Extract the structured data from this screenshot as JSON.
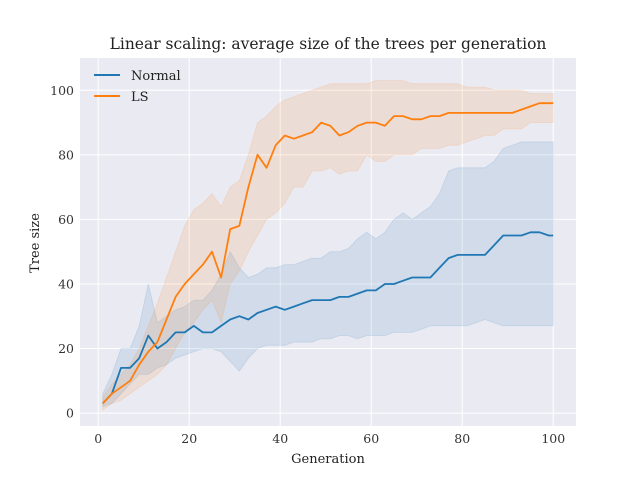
{
  "chart_data": {
    "type": "line",
    "title": "Linear scaling: average size of the trees per generation",
    "xlabel": "Generation",
    "ylabel": "Tree size",
    "xlim": [
      -4,
      105
    ],
    "ylim": [
      -4,
      110
    ],
    "xticks": [
      0,
      20,
      40,
      60,
      80,
      100
    ],
    "yticks": [
      0,
      20,
      40,
      60,
      80,
      100
    ],
    "grid": true,
    "legend_position": "top-left",
    "style": "seaborn-darkgrid",
    "colors": {
      "Normal": "#1f77b4",
      "LS": "#ff7f0e",
      "background": "#eaeaf2"
    },
    "series": [
      {
        "name": "Normal",
        "x": [
          1,
          3,
          5,
          7,
          9,
          11,
          13,
          15,
          17,
          19,
          21,
          23,
          25,
          27,
          29,
          31,
          33,
          35,
          37,
          39,
          41,
          43,
          45,
          47,
          49,
          51,
          53,
          55,
          57,
          59,
          61,
          63,
          65,
          67,
          69,
          71,
          73,
          75,
          77,
          79,
          81,
          83,
          85,
          87,
          89,
          91,
          93,
          95,
          97,
          99,
          100
        ],
        "mean": [
          3,
          6,
          14,
          14,
          17,
          24,
          20,
          22,
          25,
          25,
          27,
          25,
          25,
          27,
          29,
          30,
          29,
          31,
          32,
          33,
          32,
          33,
          34,
          35,
          35,
          35,
          36,
          36,
          37,
          38,
          38,
          40,
          40,
          41,
          42,
          42,
          42,
          45,
          48,
          49,
          49,
          49,
          49,
          52,
          55,
          55,
          55,
          56,
          56,
          55,
          55
        ],
        "lower": [
          2,
          3,
          6,
          9,
          12,
          12,
          14,
          15,
          17,
          18,
          19,
          20,
          20,
          19,
          16,
          13,
          17,
          20,
          21,
          21,
          21,
          22,
          22,
          22,
          23,
          23,
          24,
          24,
          23,
          24,
          24,
          24,
          25,
          25,
          25,
          26,
          27,
          27,
          27,
          27,
          27,
          28,
          29,
          28,
          27,
          27,
          27,
          27,
          27,
          27,
          27
        ],
        "upper": [
          6,
          12,
          20,
          20,
          27,
          40,
          28,
          30,
          32,
          33,
          35,
          35,
          38,
          43,
          50,
          45,
          42,
          43,
          45,
          45,
          46,
          46,
          47,
          48,
          48,
          50,
          50,
          51,
          54,
          56,
          54,
          56,
          60,
          62,
          60,
          62,
          64,
          68,
          75,
          76,
          76,
          76,
          76,
          78,
          82,
          83,
          84,
          84,
          84,
          84,
          84
        ]
      },
      {
        "name": "LS",
        "x": [
          1,
          3,
          5,
          7,
          9,
          11,
          13,
          15,
          17,
          19,
          21,
          23,
          25,
          27,
          29,
          31,
          33,
          35,
          37,
          39,
          41,
          43,
          45,
          47,
          49,
          51,
          53,
          55,
          57,
          59,
          61,
          63,
          65,
          67,
          69,
          71,
          73,
          75,
          77,
          79,
          81,
          83,
          85,
          87,
          89,
          91,
          93,
          95,
          97,
          99,
          100
        ],
        "mean": [
          3,
          6,
          8,
          10,
          15,
          19,
          22,
          29,
          36,
          40,
          43,
          46,
          50,
          42,
          57,
          58,
          70,
          80,
          76,
          83,
          86,
          85,
          86,
          87,
          90,
          89,
          86,
          87,
          89,
          90,
          90,
          89,
          92,
          92,
          91,
          91,
          92,
          92,
          93,
          93,
          93,
          93,
          93,
          93,
          93,
          93,
          94,
          95,
          96,
          96,
          96
        ],
        "lower": [
          1,
          3,
          4,
          6,
          8,
          10,
          12,
          15,
          20,
          25,
          28,
          32,
          35,
          28,
          40,
          44,
          50,
          55,
          60,
          62,
          65,
          70,
          70,
          75,
          75,
          76,
          74,
          75,
          75,
          80,
          78,
          78,
          80,
          80,
          80,
          82,
          82,
          82,
          83,
          83,
          84,
          85,
          86,
          86,
          88,
          88,
          88,
          90,
          90,
          90,
          90
        ],
        "upper": [
          5,
          9,
          12,
          15,
          20,
          27,
          34,
          42,
          50,
          58,
          63,
          65,
          68,
          64,
          70,
          72,
          80,
          90,
          92,
          95,
          97,
          98,
          99,
          100,
          101,
          102,
          102,
          102,
          102,
          102,
          103,
          103,
          103,
          103,
          102,
          102,
          102,
          102,
          102,
          102,
          101,
          101,
          101,
          100,
          100,
          100,
          100,
          99,
          99,
          99,
          99
        ]
      }
    ]
  }
}
